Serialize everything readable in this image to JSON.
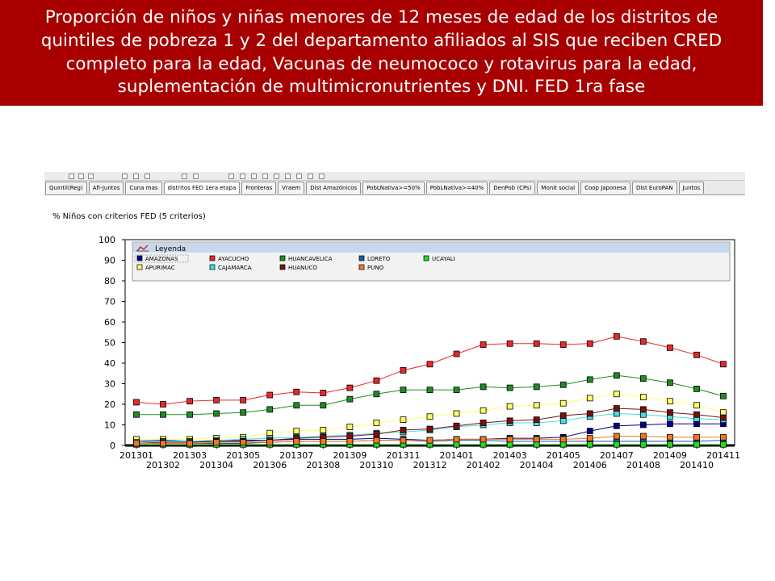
{
  "title": "Proporción de niños y niñas menores de 12 meses de edad de los distritos de quintiles de pobreza 1 y 2 del departamento afiliados al SIS que reciben CRED completo para la edad, Vacunas de neumococo y rotavirus para la edad, suplementación de multimicronutrientes y DNI. FED 1ra fase",
  "tabs": [
    {
      "label": "Quintil(Reg)"
    },
    {
      "label": "Afi-Juntos"
    },
    {
      "label": "Cuna mas"
    },
    {
      "label": "distritos FED 1era etapa"
    },
    {
      "label": "Fronteras"
    },
    {
      "label": "Vraem"
    },
    {
      "label": "Dist Amazónicos"
    },
    {
      "label": "PobLNativa>=50%"
    },
    {
      "label": "PobLNativa>=40%"
    },
    {
      "label": "DenPob (CPs)"
    },
    {
      "label": "Monit social"
    },
    {
      "label": "Coop Japonesa"
    },
    {
      "label": "Dist EuroPAN"
    },
    {
      "label": "Juntos"
    }
  ],
  "chart_data": {
    "type": "line",
    "title": "% Niños con criterios FED (5 criterios)",
    "legend_title": "Leyenda",
    "legend_position": "top",
    "grid": false,
    "ylim": [
      0,
      100
    ],
    "yticks": [
      0,
      10,
      20,
      30,
      40,
      50,
      60,
      70,
      80,
      90,
      100
    ],
    "x": [
      "201301",
      "201302",
      "201303",
      "201304",
      "201305",
      "201306",
      "201307",
      "201308",
      "201309",
      "201310",
      "201311",
      "201312",
      "201401",
      "201402",
      "201403",
      "201404",
      "201405",
      "201406",
      "201407",
      "201408",
      "201409",
      "201410",
      "201411"
    ],
    "series": [
      {
        "name": "AMAZONAS",
        "color": "#00008b",
        "values": [
          2,
          2.5,
          2,
          2,
          2.5,
          2.5,
          3,
          3,
          3,
          3.5,
          3,
          2.5,
          3,
          3,
          3.5,
          3.5,
          4,
          7,
          9.5,
          10,
          10.5,
          10.5,
          10.5
        ]
      },
      {
        "name": "AYACUCHO",
        "color": "#e8282e",
        "values": [
          21,
          20,
          21.5,
          22,
          22,
          24.5,
          26,
          25.5,
          28,
          31.5,
          36.5,
          39.5,
          44.5,
          49,
          49.5,
          49.5,
          49,
          49.5,
          53,
          50.5,
          47.5,
          44,
          39.5
        ]
      },
      {
        "name": "HUANCAVELICA",
        "color": "#228b22",
        "values": [
          15,
          15,
          15,
          15.5,
          16,
          17.5,
          19.5,
          19.5,
          22.5,
          25,
          27,
          27,
          27,
          28.5,
          28,
          28.5,
          29.5,
          32,
          34,
          32.5,
          30.5,
          27.5,
          24
        ]
      },
      {
        "name": "LORETO",
        "color": "#1e5aa0",
        "values": [
          1,
          1,
          1,
          1,
          1,
          1.5,
          2,
          2,
          2,
          2.5,
          2.5,
          2,
          2.5,
          2.5,
          2,
          2,
          2,
          2,
          2,
          2,
          2,
          2,
          2.5
        ]
      },
      {
        "name": "UCAYALI",
        "color": "#22dd22",
        "values": [
          0.5,
          0.5,
          0.5,
          0.5,
          0.5,
          0.5,
          0.5,
          0.5,
          0.5,
          0.5,
          0.5,
          0.5,
          0.5,
          0.5,
          0.5,
          0.5,
          0.5,
          0.5,
          0.5,
          0.5,
          0.5,
          0.5,
          0.5
        ]
      },
      {
        "name": "APURIMAC",
        "color": "#ffff66",
        "values": [
          3,
          3,
          3,
          3.5,
          4,
          6,
          7,
          7.5,
          9,
          11,
          12.5,
          14,
          15.5,
          17,
          19,
          19.5,
          20.5,
          23,
          25,
          23.5,
          21.5,
          19.5,
          16
        ]
      },
      {
        "name": "CAJAMARCA",
        "color": "#40e0e0",
        "values": [
          1.5,
          2,
          2,
          2.5,
          3,
          3.5,
          4,
          4.5,
          5,
          6,
          6.5,
          7.5,
          9,
          10,
          11,
          11,
          12,
          14,
          15.5,
          15,
          14,
          13,
          12.5
        ]
      },
      {
        "name": "HUANUCO",
        "color": "#7b1010",
        "values": [
          1,
          1.5,
          1.5,
          2,
          2,
          2.5,
          3.5,
          4,
          4.5,
          5.5,
          7.5,
          8,
          9.5,
          11,
          12,
          12.5,
          14.5,
          15.5,
          18,
          17.5,
          16,
          15,
          13.5
        ]
      },
      {
        "name": "PUNO",
        "color": "#f07820",
        "values": [
          1,
          1,
          1,
          1.5,
          1.5,
          1.5,
          2,
          2,
          2,
          2.5,
          2.5,
          2.5,
          3,
          3,
          3,
          3,
          3,
          3.5,
          4.5,
          4.5,
          4,
          4,
          4
        ]
      }
    ]
  }
}
